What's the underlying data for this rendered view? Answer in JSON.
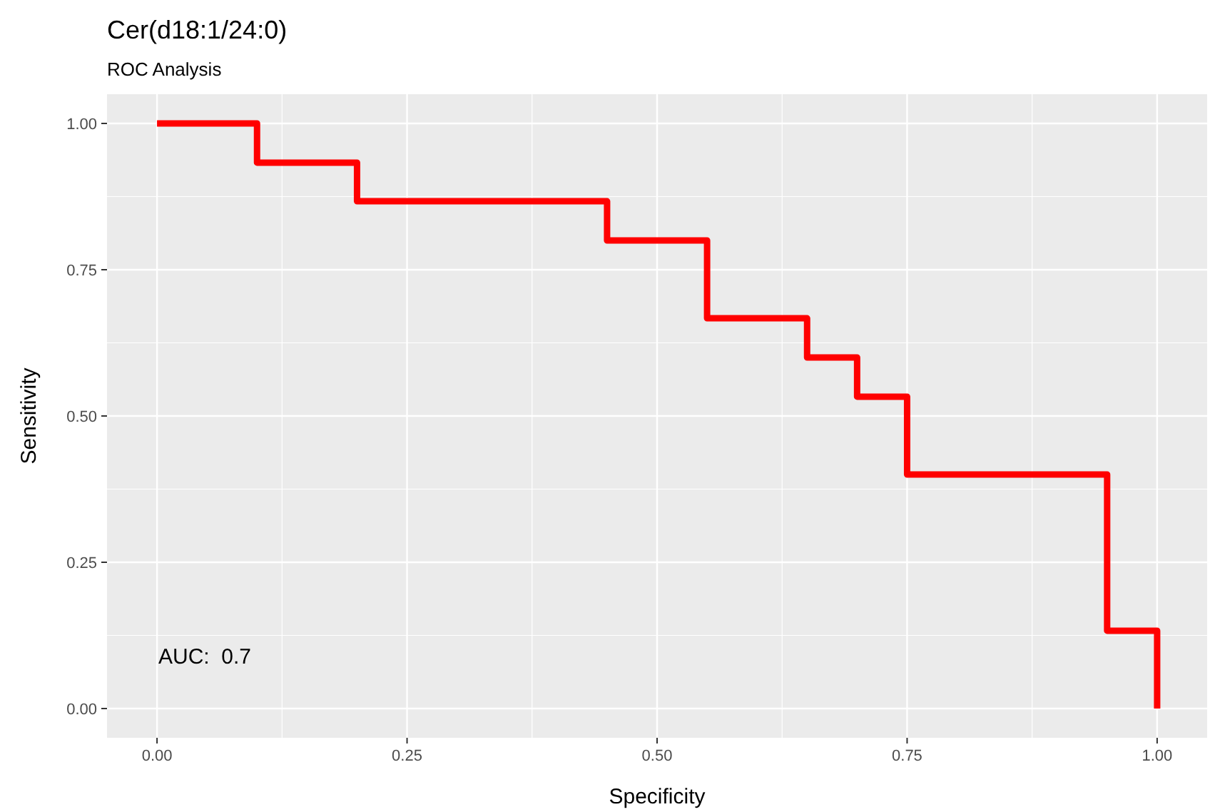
{
  "chart_data": {
    "type": "step",
    "title": "Cer(d18:1/24:0)",
    "subtitle": "ROC Analysis",
    "xlabel": "Specificity",
    "ylabel": "Sensitivity",
    "x": [
      0,
      0.1,
      0.2,
      0.45,
      0.55,
      0.65,
      0.7,
      0.75,
      0.95,
      1
    ],
    "series": [
      {
        "color": "#ff0000",
        "values": [
          1,
          0.933,
          0.867,
          0.8,
          0.667,
          0.6,
          0.533,
          0.4,
          0.133,
          0
        ]
      }
    ],
    "xlim": [
      -0.05,
      1.05
    ],
    "ylim": [
      -0.05,
      1.05
    ],
    "xticks": [
      {
        "value": 0,
        "label": "0.00"
      },
      {
        "value": 0.25,
        "label": "0.25"
      },
      {
        "value": 0.5,
        "label": "0.50"
      },
      {
        "value": 0.75,
        "label": "0.75"
      },
      {
        "value": 1,
        "label": "1.00"
      }
    ],
    "yticks": [
      {
        "value": 0,
        "label": "0.00"
      },
      {
        "value": 0.25,
        "label": "0.25"
      },
      {
        "value": 0.5,
        "label": "0.50"
      },
      {
        "value": 0.75,
        "label": "0.75"
      },
      {
        "value": 1,
        "label": "1.00"
      }
    ],
    "grid": true,
    "annotations": [
      "AUC:  0.7"
    ]
  }
}
